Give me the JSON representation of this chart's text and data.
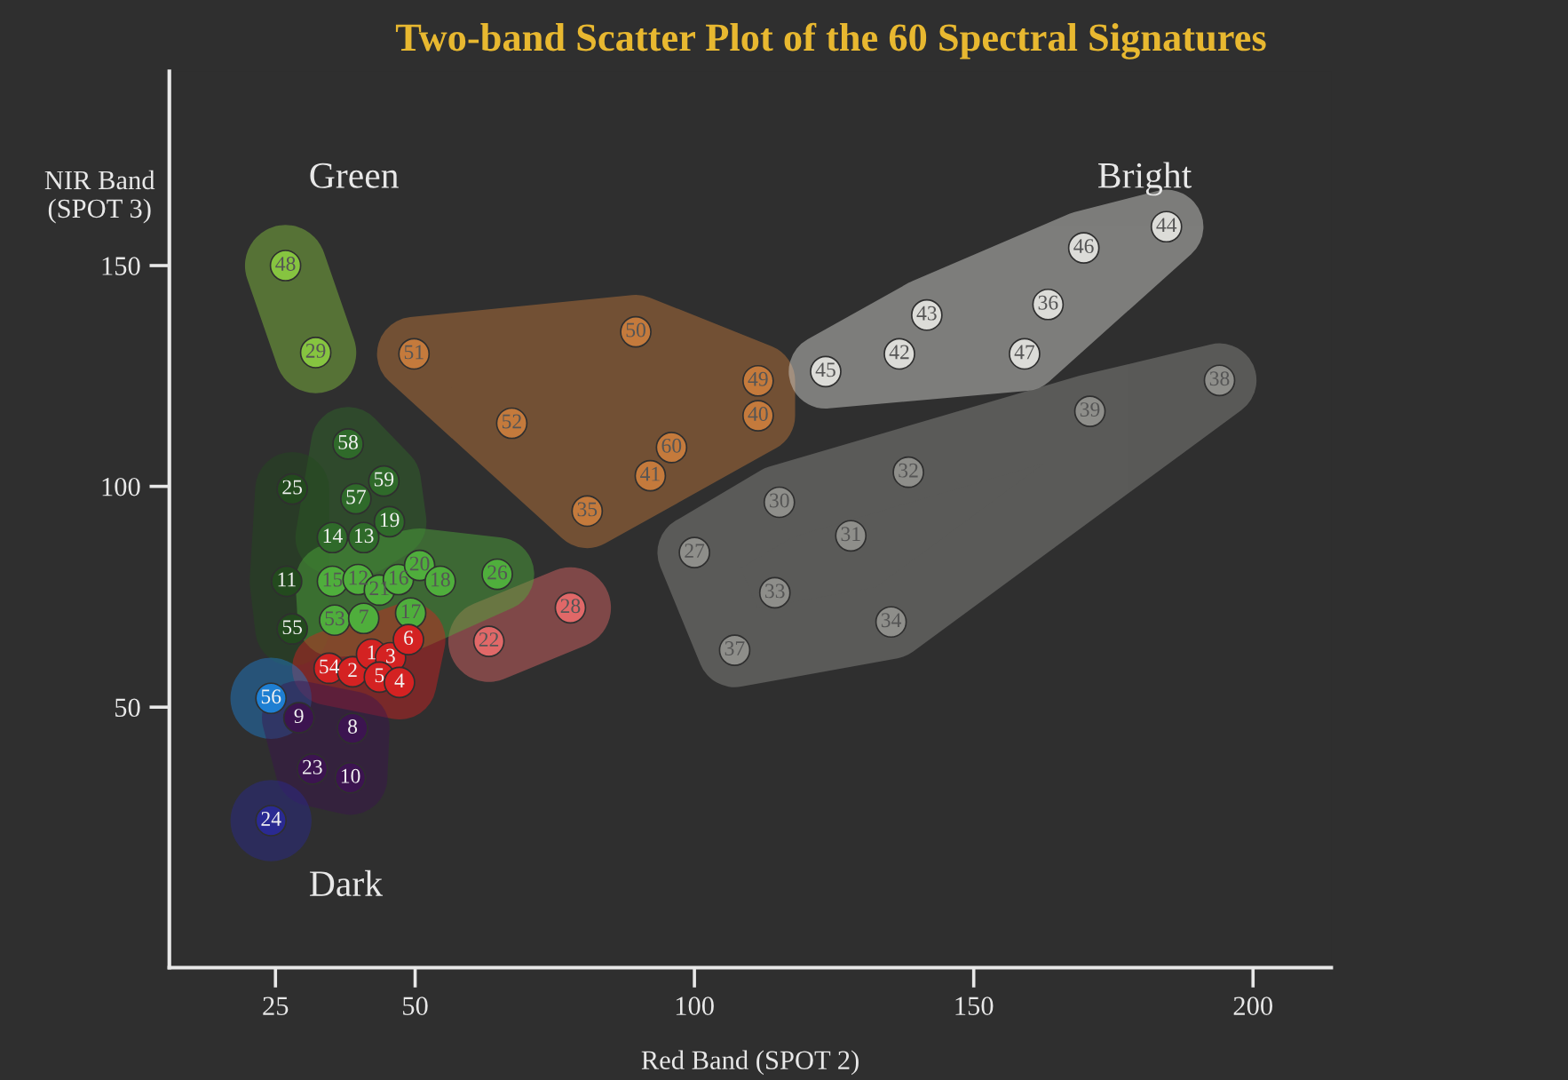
{
  "chart_data": {
    "type": "scatter",
    "title": "Two-band Scatter Plot of the 60 Spectral Signatures",
    "xlabel": "Red Band (SPOT 2)",
    "ylabel": "NIR Band\n(SPOT 3)",
    "xlim": [
      6,
      214
    ],
    "ylim": [
      -9,
      194
    ],
    "xticks": [
      25,
      50,
      100,
      150,
      200
    ],
    "yticks": [
      50,
      100,
      150
    ],
    "grid": false,
    "marker": "circle",
    "annotations": [
      "Green",
      "Bright",
      "Dark"
    ],
    "series": [
      {
        "name": "48",
        "color": "#86c440",
        "x": [
          26.8
        ],
        "values": [
          150
        ]
      },
      {
        "name": "29",
        "color": "#86c440",
        "x": [
          32.2
        ],
        "values": [
          130.3
        ]
      },
      {
        "name": "51",
        "color": "#c47a3c",
        "x": [
          49.8
        ],
        "values": [
          130
        ]
      },
      {
        "name": "50",
        "color": "#c47a3c",
        "x": [
          89.5
        ],
        "values": [
          135
        ]
      },
      {
        "name": "49",
        "color": "#c47a3c",
        "x": [
          111.4
        ],
        "values": [
          123.9
        ]
      },
      {
        "name": "40",
        "color": "#c47a3c",
        "x": [
          111.4
        ],
        "values": [
          116
        ]
      },
      {
        "name": "52",
        "color": "#c47a3c",
        "x": [
          67.3
        ],
        "values": [
          114.3
        ]
      },
      {
        "name": "60",
        "color": "#c47a3c",
        "x": [
          95.9
        ],
        "values": [
          108.8
        ]
      },
      {
        "name": "41",
        "color": "#c47a3c",
        "x": [
          92.1
        ],
        "values": [
          102.4
        ]
      },
      {
        "name": "35",
        "color": "#c47a3c",
        "x": [
          80.8
        ],
        "values": [
          94.4
        ]
      },
      {
        "name": "45",
        "color": "#dcdcd8",
        "x": [
          123.5
        ],
        "values": [
          126
        ]
      },
      {
        "name": "42",
        "color": "#dcdcd8",
        "x": [
          136.7
        ],
        "values": [
          130
        ]
      },
      {
        "name": "43",
        "color": "#dcdcd8",
        "x": [
          141.6
        ],
        "values": [
          138.8
        ]
      },
      {
        "name": "46",
        "color": "#dcdcd8",
        "x": [
          169.7
        ],
        "values": [
          154
        ]
      },
      {
        "name": "44",
        "color": "#dcdcd8",
        "x": [
          184.5
        ],
        "values": [
          158.8
        ]
      },
      {
        "name": "36",
        "color": "#dcdcd8",
        "x": [
          163.3
        ],
        "values": [
          141.2
        ]
      },
      {
        "name": "47",
        "color": "#dcdcd8",
        "x": [
          159.1
        ],
        "values": [
          130
        ]
      },
      {
        "name": "38",
        "color": "#8e8e8a",
        "x": [
          194
        ],
        "values": [
          124
        ]
      },
      {
        "name": "39",
        "color": "#8e8e8a",
        "x": [
          170.8
        ],
        "values": [
          117
        ]
      },
      {
        "name": "32",
        "color": "#8e8e8a",
        "x": [
          138.3
        ],
        "values": [
          103.2
        ]
      },
      {
        "name": "30",
        "color": "#8e8e8a",
        "x": [
          115.2
        ],
        "values": [
          96.4
        ]
      },
      {
        "name": "31",
        "color": "#8e8e8a",
        "x": [
          128
        ],
        "values": [
          88.8
        ]
      },
      {
        "name": "27",
        "color": "#8e8e8a",
        "x": [
          100
        ],
        "values": [
          85
        ]
      },
      {
        "name": "33",
        "color": "#8e8e8a",
        "x": [
          114.4
        ],
        "values": [
          75.9
        ]
      },
      {
        "name": "34",
        "color": "#8e8e8a",
        "x": [
          135.2
        ],
        "values": [
          69.3
        ]
      },
      {
        "name": "37",
        "color": "#8e8e8a",
        "x": [
          107.2
        ],
        "values": [
          62.9
        ]
      },
      {
        "name": "28",
        "color": "#e06868",
        "x": [
          77.8
        ],
        "values": [
          72.5
        ]
      },
      {
        "name": "22",
        "color": "#e06868",
        "x": [
          63.2
        ],
        "values": [
          64.9
        ]
      },
      {
        "name": "58",
        "color": "#2f6a2a",
        "x": [
          38
        ],
        "values": [
          109.6
        ]
      },
      {
        "name": "57",
        "color": "#2f6a2a",
        "x": [
          39.4
        ],
        "values": [
          97.2
        ]
      },
      {
        "name": "59",
        "color": "#2f6a2a",
        "x": [
          44.4
        ],
        "values": [
          101.2
        ]
      },
      {
        "name": "19",
        "color": "#2f6a2a",
        "x": [
          45.4
        ],
        "values": [
          92
        ]
      },
      {
        "name": "14",
        "color": "#2f6a2a",
        "x": [
          35.2
        ],
        "values": [
          88.4
        ]
      },
      {
        "name": "13",
        "color": "#2f6a2a",
        "x": [
          40.8
        ],
        "values": [
          88.4
        ]
      },
      {
        "name": "25",
        "color": "#234a1e",
        "x": [
          28
        ],
        "values": [
          99.4
        ]
      },
      {
        "name": "11",
        "color": "#234a1e",
        "x": [
          27
        ],
        "values": [
          78.5
        ]
      },
      {
        "name": "55",
        "color": "#234a1e",
        "x": [
          28
        ],
        "values": [
          67.7
        ]
      },
      {
        "name": "15",
        "color": "#4fae3c",
        "x": [
          35.2
        ],
        "values": [
          78.5
        ]
      },
      {
        "name": "12",
        "color": "#4fae3c",
        "x": [
          39.8
        ],
        "values": [
          78.9
        ]
      },
      {
        "name": "21",
        "color": "#4fae3c",
        "x": [
          43.6
        ],
        "values": [
          76.5
        ]
      },
      {
        "name": "16",
        "color": "#4fae3c",
        "x": [
          47
        ],
        "values": [
          78.9
        ]
      },
      {
        "name": "20",
        "color": "#4fae3c",
        "x": [
          50.8
        ],
        "values": [
          82.1
        ]
      },
      {
        "name": "18",
        "color": "#4fae3c",
        "x": [
          54.5
        ],
        "values": [
          78.5
        ]
      },
      {
        "name": "26",
        "color": "#4fae3c",
        "x": [
          64.7
        ],
        "values": [
          80.1
        ]
      },
      {
        "name": "53",
        "color": "#4fae3c",
        "x": [
          35.6
        ],
        "values": [
          69.7
        ]
      },
      {
        "name": "7",
        "color": "#4fae3c",
        "x": [
          40.8
        ],
        "values": [
          70.1
        ]
      },
      {
        "name": "17",
        "color": "#4fae3c",
        "x": [
          49.2
        ],
        "values": [
          71.3
        ]
      },
      {
        "name": "54",
        "color": "#d42222",
        "x": [
          34.6
        ],
        "values": [
          58.8
        ]
      },
      {
        "name": "2",
        "color": "#d42222",
        "x": [
          38.8
        ],
        "values": [
          58
        ]
      },
      {
        "name": "1",
        "color": "#d42222",
        "x": [
          42.2
        ],
        "values": [
          62
        ]
      },
      {
        "name": "3",
        "color": "#d42222",
        "x": [
          45.6
        ],
        "values": [
          61.2
        ]
      },
      {
        "name": "6",
        "color": "#d42222",
        "x": [
          48.8
        ],
        "values": [
          65.3
        ]
      },
      {
        "name": "5",
        "color": "#d42222",
        "x": [
          43.6
        ],
        "values": [
          56.8
        ]
      },
      {
        "name": "4",
        "color": "#d42222",
        "x": [
          47.2
        ],
        "values": [
          55.6
        ]
      },
      {
        "name": "56",
        "color": "#1f7fd2",
        "x": [
          24.2
        ],
        "values": [
          52
        ]
      },
      {
        "name": "9",
        "color": "#3c1450",
        "x": [
          29.2
        ],
        "values": [
          47.6
        ]
      },
      {
        "name": "8",
        "color": "#3c1450",
        "x": [
          38.8
        ],
        "values": [
          45.2
        ]
      },
      {
        "name": "23",
        "color": "#3c1450",
        "x": [
          31.6
        ],
        "values": [
          36
        ]
      },
      {
        "name": "10",
        "color": "#3c1450",
        "x": [
          38.4
        ],
        "values": [
          34
        ]
      },
      {
        "name": "24",
        "color": "#2a2a92",
        "x": [
          24.2
        ],
        "values": [
          24.3
        ]
      }
    ]
  }
}
